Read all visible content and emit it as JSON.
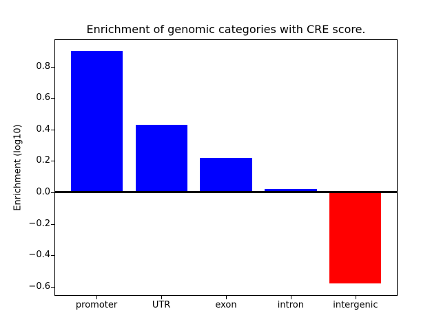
{
  "figure": {
    "background": "#ffffff"
  },
  "chart_data": {
    "type": "bar",
    "title": "Enrichment of genomic categories with CRE score.",
    "ylabel": "Enrichment (log10)",
    "xlabel": "",
    "categories": [
      "promoter",
      "UTR",
      "exon",
      "intron",
      "intergenic"
    ],
    "values": [
      0.9,
      0.43,
      0.22,
      0.02,
      -0.58
    ],
    "bar_colors": [
      "#0000ff",
      "#0000ff",
      "#0000ff",
      "#0000ff",
      "#ff0000"
    ],
    "positive_color": "#0000ff",
    "negative_color": "#ff0000",
    "yticks": [
      0.8,
      0.6,
      0.4,
      0.2,
      0.0,
      -0.2,
      -0.4,
      -0.6
    ],
    "ytick_labels": [
      "0.8",
      "0.6",
      "0.4",
      "0.2",
      "0.0",
      "−0.2",
      "−0.4",
      "−0.6"
    ],
    "ylim": [
      -0.654,
      0.969
    ],
    "bar_width_fraction": 0.8,
    "zero_line": true,
    "grid": false,
    "legend_position": "none",
    "axis_color": "#000000",
    "text_color": "#000000"
  }
}
